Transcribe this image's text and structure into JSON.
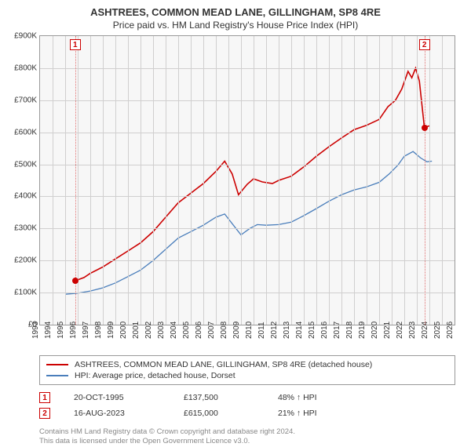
{
  "title": "ASHTREES, COMMON MEAD LANE, GILLINGHAM, SP8 4RE",
  "subtitle": "Price paid vs. HM Land Registry's House Price Index (HPI)",
  "chart": {
    "type": "line",
    "background_color": "#f7f7f7",
    "grid_color": "#d0cfcf",
    "axis_color": "#999999",
    "label_fontsize": 10,
    "title_fontsize": 13,
    "ylim": [
      0,
      900
    ],
    "ytick_step": 100,
    "y_prefix": "£",
    "y_suffix": "K",
    "xlim": [
      1993,
      2026
    ],
    "xtick_step": 1,
    "series": [
      {
        "name": "ASHTREES, COMMON MEAD LANE, GILLINGHAM, SP8 4RE (detached house)",
        "color": "#cc0000",
        "line_width": 1.6,
        "data": [
          [
            1995.8,
            137
          ],
          [
            1996.5,
            147
          ],
          [
            1997,
            160
          ],
          [
            1998,
            180
          ],
          [
            1999,
            205
          ],
          [
            2000,
            230
          ],
          [
            2001,
            255
          ],
          [
            2002,
            290
          ],
          [
            2003,
            335
          ],
          [
            2004,
            380
          ],
          [
            2005,
            410
          ],
          [
            2006,
            440
          ],
          [
            2007,
            478
          ],
          [
            2007.7,
            510
          ],
          [
            2008.3,
            470
          ],
          [
            2008.8,
            405
          ],
          [
            2009.5,
            438
          ],
          [
            2010,
            455
          ],
          [
            2010.7,
            445
          ],
          [
            2011.5,
            440
          ],
          [
            2012,
            450
          ],
          [
            2013,
            463
          ],
          [
            2014,
            492
          ],
          [
            2015,
            525
          ],
          [
            2016,
            555
          ],
          [
            2017,
            582
          ],
          [
            2018,
            608
          ],
          [
            2019,
            622
          ],
          [
            2020,
            640
          ],
          [
            2020.7,
            680
          ],
          [
            2021.3,
            700
          ],
          [
            2021.8,
            735
          ],
          [
            2022.3,
            790
          ],
          [
            2022.6,
            770
          ],
          [
            2022.9,
            800
          ],
          [
            2023.2,
            760
          ],
          [
            2023.6,
            615
          ],
          [
            2024,
            620
          ]
        ]
      },
      {
        "name": "HPI: Average price, detached house, Dorset",
        "color": "#4a7ebb",
        "line_width": 1.3,
        "data": [
          [
            1995,
            95
          ],
          [
            1996,
            98
          ],
          [
            1997,
            105
          ],
          [
            1998,
            115
          ],
          [
            1999,
            130
          ],
          [
            2000,
            150
          ],
          [
            2001,
            170
          ],
          [
            2002,
            200
          ],
          [
            2003,
            235
          ],
          [
            2004,
            270
          ],
          [
            2005,
            290
          ],
          [
            2006,
            310
          ],
          [
            2007,
            335
          ],
          [
            2007.7,
            345
          ],
          [
            2008.5,
            305
          ],
          [
            2009,
            280
          ],
          [
            2009.7,
            300
          ],
          [
            2010.3,
            312
          ],
          [
            2011,
            310
          ],
          [
            2012,
            312
          ],
          [
            2013,
            320
          ],
          [
            2014,
            340
          ],
          [
            2015,
            362
          ],
          [
            2016,
            385
          ],
          [
            2017,
            405
          ],
          [
            2018,
            420
          ],
          [
            2019,
            430
          ],
          [
            2020,
            444
          ],
          [
            2020.8,
            470
          ],
          [
            2021.5,
            498
          ],
          [
            2022,
            525
          ],
          [
            2022.7,
            540
          ],
          [
            2023.3,
            520
          ],
          [
            2023.8,
            508
          ],
          [
            2024.2,
            510
          ]
        ]
      }
    ],
    "markers": [
      {
        "n": "1",
        "x": 1995.8,
        "y": 137
      },
      {
        "n": "2",
        "x": 2023.6,
        "y": 615
      }
    ],
    "marker_line_color": "#e07070",
    "marker_box_border": "#cc0000"
  },
  "legend": {
    "items": [
      {
        "label": "ASHTREES, COMMON MEAD LANE, GILLINGHAM, SP8 4RE (detached house)",
        "color": "#cc0000"
      },
      {
        "label": "HPI: Average price, detached house, Dorset",
        "color": "#4a7ebb"
      }
    ]
  },
  "transactions": [
    {
      "n": "1",
      "date": "20-OCT-1995",
      "price": "£137,500",
      "delta": "48% ↑ HPI"
    },
    {
      "n": "2",
      "date": "16-AUG-2023",
      "price": "£615,000",
      "delta": "21% ↑ HPI"
    }
  ],
  "footer_line1": "Contains HM Land Registry data © Crown copyright and database right 2024.",
  "footer_line2": "This data is licensed under the Open Government Licence v3.0."
}
